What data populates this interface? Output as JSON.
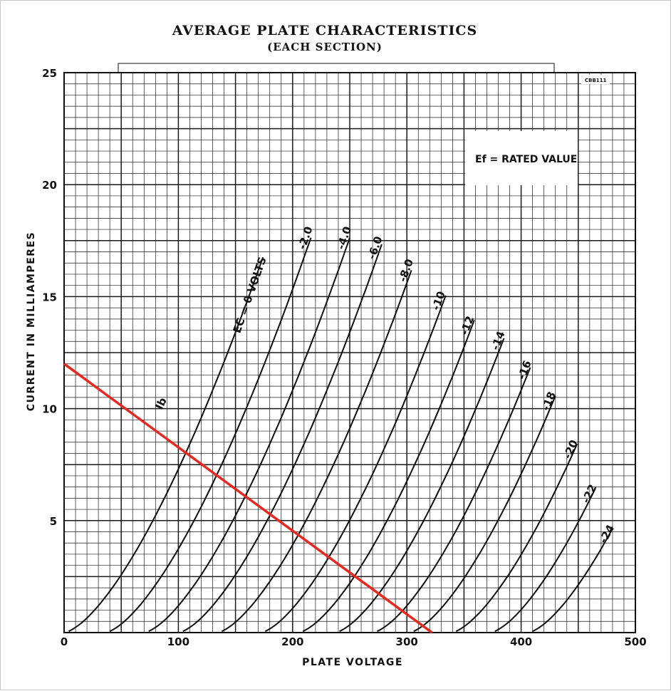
{
  "chart_data": {
    "type": "line",
    "title": "AVERAGE PLATE CHARACTERISTICS",
    "subtitle": "(EACH SECTION)",
    "xlabel": "PLATE VOLTAGE",
    "ylabel": "CURRENT IN MILLIAMPERES",
    "xlim": [
      0,
      500
    ],
    "ylim": [
      0,
      25
    ],
    "x_ticks": [
      "0",
      "100",
      "200",
      "300",
      "400",
      "500"
    ],
    "y_ticks": [
      "5",
      "10",
      "15",
      "20",
      "25"
    ],
    "grid": true,
    "annotation": "Ef = RATED VALUE",
    "ref_code": "CBB111",
    "curve_axis_label": "Ib",
    "series": [
      {
        "name": "EC = 0 VOLTS",
        "label": "EC = 0 VOLTS",
        "grid_voltage": 0,
        "offset": 0,
        "x_end": 175
      },
      {
        "name": "-2.0",
        "label": "-2.0",
        "grid_voltage": -2,
        "offset": 36,
        "x_end": 217
      },
      {
        "name": "-4.0",
        "label": "-4.0",
        "grid_voltage": -4,
        "offset": 70,
        "x_end": 251
      },
      {
        "name": "-6.0",
        "label": "-6.0",
        "grid_voltage": -6,
        "offset": 100,
        "x_end": 278
      },
      {
        "name": "-8.0",
        "label": "-8.0",
        "grid_voltage": -8,
        "offset": 134,
        "x_end": 305
      },
      {
        "name": "-10",
        "label": "-10",
        "grid_voltage": -10,
        "offset": 172,
        "x_end": 334
      },
      {
        "name": "-12",
        "label": "-12",
        "grid_voltage": -12,
        "offset": 205,
        "x_end": 359
      },
      {
        "name": "-14",
        "label": "-14",
        "grid_voltage": -14,
        "offset": 237,
        "x_end": 386
      },
      {
        "name": "-16",
        "label": "-16",
        "grid_voltage": -16,
        "offset": 270,
        "x_end": 409
      },
      {
        "name": "-18",
        "label": "-18",
        "grid_voltage": -18,
        "offset": 302,
        "x_end": 430
      },
      {
        "name": "-20",
        "label": "-20",
        "grid_voltage": -20,
        "offset": 339,
        "x_end": 449
      },
      {
        "name": "-22",
        "label": "-22",
        "grid_voltage": -22,
        "offset": 373,
        "x_end": 465
      },
      {
        "name": "-24",
        "label": "-24",
        "grid_voltage": -24,
        "offset": 406,
        "x_end": 480
      }
    ],
    "load_line": {
      "x": [
        0,
        322
      ],
      "y": [
        12,
        0
      ],
      "color": "#e8281e"
    }
  },
  "colors": {
    "ink": "#111111",
    "grid": "#1a1a1a",
    "load_line": "#e8281e",
    "background": "#ffffff"
  }
}
